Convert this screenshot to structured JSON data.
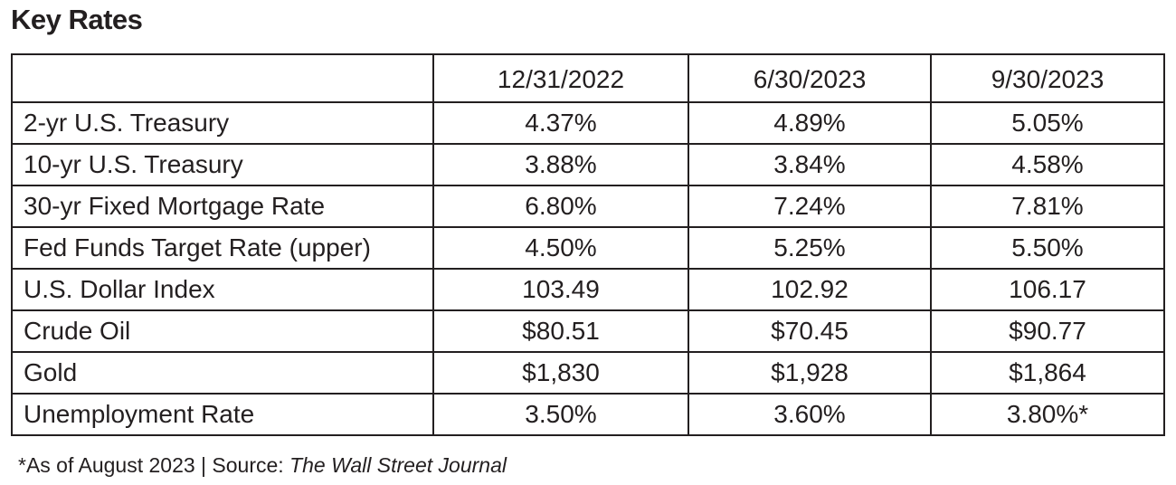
{
  "title": "Key Rates",
  "table": {
    "corner": "",
    "columns": [
      "12/31/2022",
      "6/30/2023",
      "9/30/2023"
    ],
    "rows": [
      {
        "label": "2-yr U.S. Treasury",
        "values": [
          "4.37%",
          "4.89%",
          "5.05%"
        ]
      },
      {
        "label": "10-yr U.S. Treasury",
        "values": [
          "3.88%",
          "3.84%",
          "4.58%"
        ]
      },
      {
        "label": "30-yr Fixed Mortgage Rate",
        "values": [
          "6.80%",
          "7.24%",
          "7.81%"
        ]
      },
      {
        "label": "Fed Funds Target Rate (upper)",
        "values": [
          "4.50%",
          "5.25%",
          "5.50%"
        ]
      },
      {
        "label": "U.S. Dollar Index",
        "values": [
          "103.49",
          "102.92",
          "106.17"
        ]
      },
      {
        "label": "Crude Oil",
        "values": [
          "$80.51",
          "$70.45",
          "$90.77"
        ]
      },
      {
        "label": "Gold",
        "values": [
          "$1,830",
          "$1,928",
          "$1,864"
        ]
      },
      {
        "label": "Unemployment Rate",
        "values": [
          "3.50%",
          "3.60%",
          "3.80%*"
        ]
      }
    ]
  },
  "footnote": {
    "prefix": "*As of August 2023 | Source: ",
    "source": "The Wall Street Journal"
  }
}
